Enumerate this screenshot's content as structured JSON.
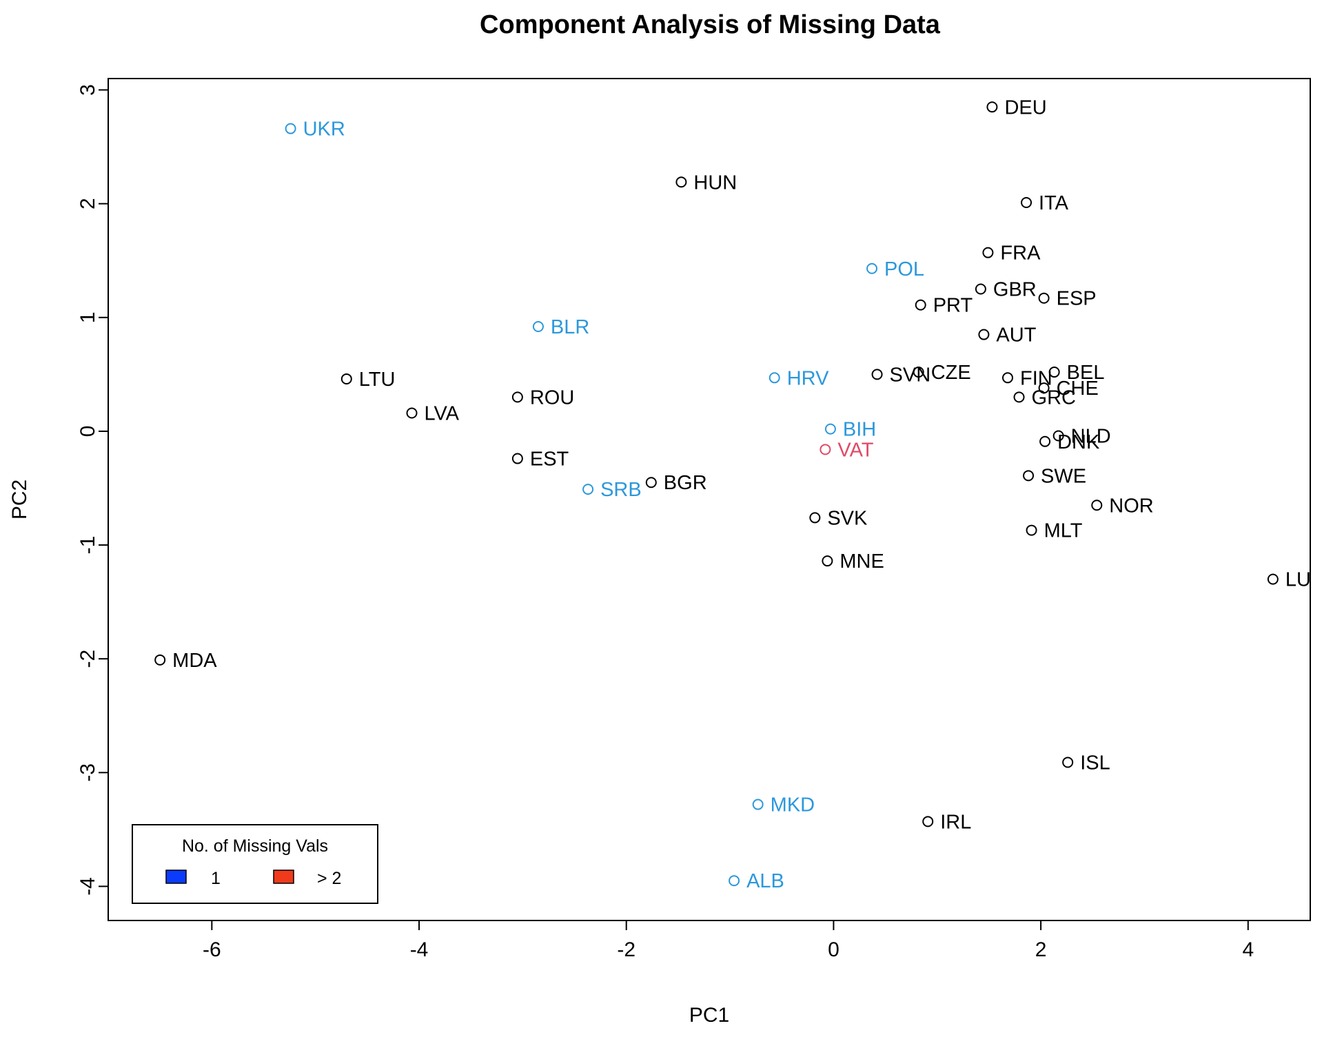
{
  "chart_data": {
    "type": "scatter",
    "title": "Component Analysis of Missing Data",
    "xlabel": "PC1",
    "ylabel": "PC2",
    "xlim": [
      -7.0,
      4.6
    ],
    "ylim": [
      -4.3,
      3.1
    ],
    "xticks": [
      "-6",
      "-4",
      "-2",
      "0",
      "2",
      "4"
    ],
    "yticks": [
      "3",
      "2",
      "1",
      "0",
      "-1",
      "-2",
      "-3",
      "-4"
    ],
    "colors": {
      "none": "#000000",
      "one": "#2c98dc",
      "more": "#df4a67"
    },
    "points": [
      {
        "label": "UKR",
        "x": -5.24,
        "y": 2.66,
        "group": "one"
      },
      {
        "label": "HUN",
        "x": -1.47,
        "y": 2.19,
        "group": "none"
      },
      {
        "label": "DEU",
        "x": 1.53,
        "y": 2.85,
        "group": "none"
      },
      {
        "label": "ITA",
        "x": 1.86,
        "y": 2.01,
        "group": "none"
      },
      {
        "label": "FRA",
        "x": 1.49,
        "y": 1.57,
        "group": "none"
      },
      {
        "label": "POL",
        "x": 0.37,
        "y": 1.43,
        "group": "one"
      },
      {
        "label": "GBR",
        "x": 1.42,
        "y": 1.25,
        "group": "none"
      },
      {
        "label": "ESP",
        "x": 2.03,
        "y": 1.17,
        "group": "none"
      },
      {
        "label": "PRT",
        "x": 0.84,
        "y": 1.11,
        "group": "none"
      },
      {
        "label": "BLR",
        "x": -2.85,
        "y": 0.92,
        "group": "one"
      },
      {
        "label": "AUT",
        "x": 1.45,
        "y": 0.85,
        "group": "none"
      },
      {
        "label": "LTU",
        "x": -4.7,
        "y": 0.46,
        "group": "none"
      },
      {
        "label": "HRV",
        "x": -0.57,
        "y": 0.47,
        "group": "one"
      },
      {
        "label": "SVN",
        "x": 0.42,
        "y": 0.5,
        "group": "none"
      },
      {
        "label": "CZE",
        "x": 0.82,
        "y": 0.52,
        "group": "none"
      },
      {
        "label": "FIN",
        "x": 1.68,
        "y": 0.47,
        "group": "none"
      },
      {
        "label": "BEL",
        "x": 2.13,
        "y": 0.52,
        "group": "none"
      },
      {
        "label": "CHE",
        "x": 2.03,
        "y": 0.38,
        "group": "none"
      },
      {
        "label": "GRC",
        "x": 1.79,
        "y": 0.3,
        "group": "none"
      },
      {
        "label": "ROU",
        "x": -3.05,
        "y": 0.3,
        "group": "none"
      },
      {
        "label": "LVA",
        "x": -4.07,
        "y": 0.16,
        "group": "none"
      },
      {
        "label": "BIH",
        "x": -0.03,
        "y": 0.02,
        "group": "one"
      },
      {
        "label": "NLD",
        "x": 2.17,
        "y": -0.04,
        "group": "none"
      },
      {
        "label": "DNK",
        "x": 2.04,
        "y": -0.09,
        "group": "none"
      },
      {
        "label": "VAT",
        "x": -0.08,
        "y": -0.16,
        "group": "more"
      },
      {
        "label": "EST",
        "x": -3.05,
        "y": -0.24,
        "group": "none"
      },
      {
        "label": "SWE",
        "x": 1.88,
        "y": -0.39,
        "group": "none"
      },
      {
        "label": "BGR",
        "x": -1.76,
        "y": -0.45,
        "group": "none"
      },
      {
        "label": "SRB",
        "x": -2.37,
        "y": -0.51,
        "group": "one"
      },
      {
        "label": "NOR",
        "x": 2.54,
        "y": -0.65,
        "group": "none"
      },
      {
        "label": "SVK",
        "x": -0.18,
        "y": -0.76,
        "group": "none"
      },
      {
        "label": "MLT",
        "x": 1.91,
        "y": -0.87,
        "group": "none"
      },
      {
        "label": "MNE",
        "x": -0.06,
        "y": -1.14,
        "group": "none"
      },
      {
        "label": "LUX",
        "x": 4.24,
        "y": -1.3,
        "group": "none"
      },
      {
        "label": "MDA",
        "x": -6.5,
        "y": -2.01,
        "group": "none"
      },
      {
        "label": "ISL",
        "x": 2.26,
        "y": -2.91,
        "group": "none"
      },
      {
        "label": "MKD",
        "x": -0.73,
        "y": -3.28,
        "group": "one"
      },
      {
        "label": "IRL",
        "x": 0.91,
        "y": -3.43,
        "group": "none"
      },
      {
        "label": "ALB",
        "x": -0.96,
        "y": -3.95,
        "group": "one"
      }
    ],
    "legend": {
      "title": "No. of Missing Vals",
      "position": "bottom-left",
      "entries": [
        {
          "label": "1",
          "color": "#0a3cff"
        },
        {
          "label": "> 2",
          "color": "#f03a1c"
        }
      ]
    }
  }
}
